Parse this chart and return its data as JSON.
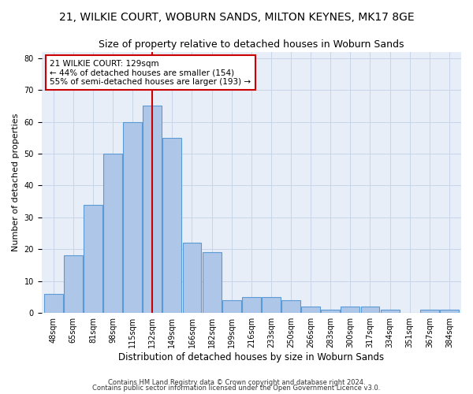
{
  "title1": "21, WILKIE COURT, WOBURN SANDS, MILTON KEYNES, MK17 8GE",
  "title2": "Size of property relative to detached houses in Woburn Sands",
  "xlabel": "Distribution of detached houses by size in Woburn Sands",
  "ylabel": "Number of detached properties",
  "footnote1": "Contains HM Land Registry data © Crown copyright and database right 2024.",
  "footnote2": "Contains public sector information licensed under the Open Government Licence v3.0.",
  "categories": [
    "48sqm",
    "65sqm",
    "81sqm",
    "98sqm",
    "115sqm",
    "132sqm",
    "149sqm",
    "166sqm",
    "182sqm",
    "199sqm",
    "216sqm",
    "233sqm",
    "250sqm",
    "266sqm",
    "283sqm",
    "300sqm",
    "317sqm",
    "334sqm",
    "351sqm",
    "367sqm",
    "384sqm"
  ],
  "values": [
    6,
    18,
    34,
    50,
    60,
    65,
    55,
    22,
    19,
    4,
    5,
    5,
    4,
    2,
    1,
    2,
    2,
    1,
    0,
    1,
    1
  ],
  "bar_color": "#aec6e8",
  "bar_edge_color": "#5b9bd5",
  "vline_color": "#cc0000",
  "annotation_line1": "21 WILKIE COURT: 129sqm",
  "annotation_line2": "← 44% of detached houses are smaller (154)",
  "annotation_line3": "55% of semi-detached houses are larger (193) →",
  "annotation_box_color": "white",
  "annotation_box_edge": "#cc0000",
  "ylim": [
    0,
    82
  ],
  "yticks": [
    0,
    10,
    20,
    30,
    40,
    50,
    60,
    70,
    80
  ],
  "grid_color": "#c8d4e8",
  "bg_color": "#e8eef8",
  "title1_fontsize": 10,
  "title2_fontsize": 9,
  "xlabel_fontsize": 8.5,
  "ylabel_fontsize": 8,
  "tick_fontsize": 7,
  "annotation_fontsize": 7.5,
  "footnote_fontsize": 6,
  "vline_idx": 5
}
